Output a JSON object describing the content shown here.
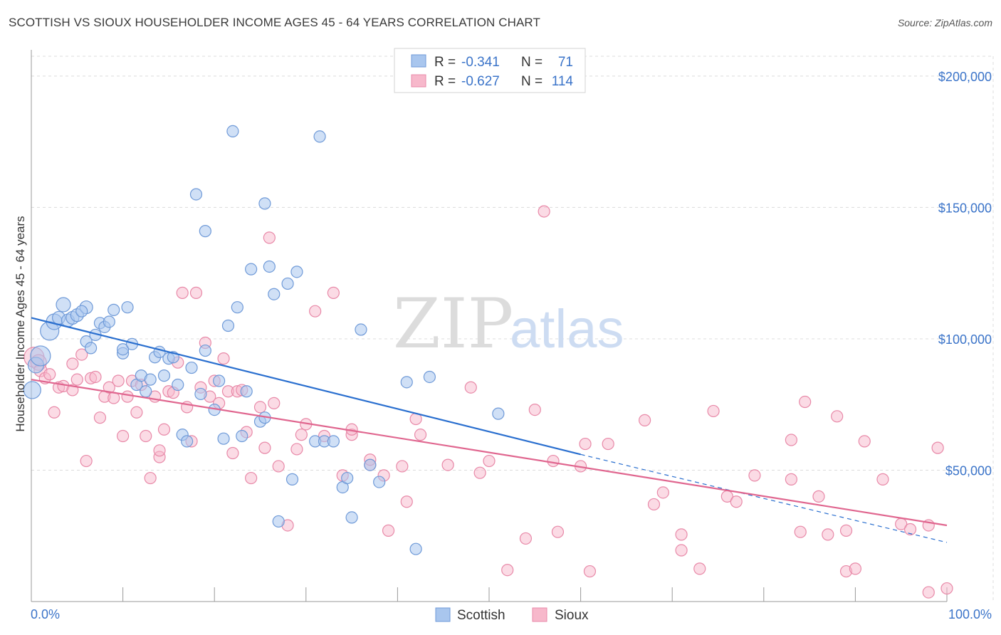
{
  "title": "SCOTTISH VS SIOUX HOUSEHOLDER INCOME AGES 45 - 64 YEARS CORRELATION CHART",
  "source": "Source: ZipAtlas.com",
  "watermark": {
    "part1": "ZIP",
    "part2": "atlas"
  },
  "colors": {
    "scottish_fill": "#a9c6ee",
    "scottish_stroke": "#6f9ad8",
    "scottish_line": "#2a6fcf",
    "sioux_fill": "#f7b8cb",
    "sioux_stroke": "#e889a8",
    "sioux_line": "#e0668f",
    "tick_text": "#3b74c9",
    "grid": "#dcdcdc"
  },
  "legend": {
    "rows": [
      {
        "r_label": "R =",
        "r_value": "-0.341",
        "n_label": "N =",
        "n_value": "71"
      },
      {
        "r_label": "R =",
        "r_value": "-0.627",
        "n_label": "N =",
        "n_value": "114"
      }
    ]
  },
  "bottom_legend": [
    "Scottish",
    "Sioux"
  ],
  "chart_data": {
    "type": "scatter",
    "title": "SCOTTISH VS SIOUX HOUSEHOLDER INCOME AGES 45 - 64 YEARS CORRELATION CHART",
    "xlabel": "",
    "ylabel": "Householder Income Ages 45 - 64 years",
    "xlim": [
      0,
      100
    ],
    "ylim": [
      0,
      210000
    ],
    "x_tick_labels": [
      "0.0%",
      "100.0%"
    ],
    "y_ticks": [
      50000,
      100000,
      150000,
      200000
    ],
    "y_tick_labels": [
      "$50,000",
      "$100,000",
      "$150,000",
      "$200,000"
    ],
    "grid": true,
    "legend_position": "top-center",
    "series": [
      {
        "name": "Scottish",
        "r": -0.341,
        "n": 71,
        "trend": {
          "x0": 0,
          "y0": 108000,
          "x1": 60,
          "y1": 56000,
          "dash_to_x": 100,
          "dash_to_y": 22500
        },
        "points": [
          [
            0.1,
            80500,
            12
          ],
          [
            0.5,
            90000,
            11
          ],
          [
            1,
            93500,
            14
          ],
          [
            2,
            103000,
            13
          ],
          [
            2.5,
            106500,
            11
          ],
          [
            3,
            108000,
            9
          ],
          [
            3.5,
            113000,
            10
          ],
          [
            4,
            107000,
            9
          ],
          [
            4.5,
            108000,
            9
          ],
          [
            5,
            109000,
            9
          ],
          [
            6,
            112000,
            9
          ],
          [
            5.5,
            110500,
            8
          ],
          [
            6,
            99000,
            8
          ],
          [
            6.5,
            96500,
            8
          ],
          [
            7,
            101500,
            8
          ],
          [
            7.5,
            106000,
            8
          ],
          [
            8,
            104500,
            8
          ],
          [
            8.5,
            106500,
            8
          ],
          [
            9,
            111000,
            8
          ],
          [
            10,
            94500,
            8
          ],
          [
            10,
            96000,
            8
          ],
          [
            10.5,
            112000,
            8
          ],
          [
            11,
            98000,
            8
          ],
          [
            11.5,
            82500,
            8
          ],
          [
            12,
            86000,
            8
          ],
          [
            12.5,
            80000,
            8
          ],
          [
            13,
            84500,
            8
          ],
          [
            13.5,
            93000,
            8
          ],
          [
            14,
            95000,
            8
          ],
          [
            14.5,
            86000,
            8
          ],
          [
            15,
            92500,
            8
          ],
          [
            15.5,
            93000,
            8
          ],
          [
            16,
            82500,
            8
          ],
          [
            16.5,
            63500,
            8
          ],
          [
            17,
            61000,
            8
          ],
          [
            17.5,
            89000,
            8
          ],
          [
            18,
            155000,
            8
          ],
          [
            18.5,
            79000,
            8
          ],
          [
            19,
            95500,
            8
          ],
          [
            19,
            141000,
            8
          ],
          [
            20,
            73000,
            8
          ],
          [
            20.5,
            84000,
            8
          ],
          [
            21,
            62000,
            8
          ],
          [
            21.5,
            105000,
            8
          ],
          [
            22,
            179000,
            8
          ],
          [
            22.5,
            112000,
            8
          ],
          [
            23,
            63000,
            8
          ],
          [
            23.5,
            80000,
            8
          ],
          [
            24,
            126500,
            8
          ],
          [
            25,
            68500,
            8
          ],
          [
            25.5,
            70000,
            8
          ],
          [
            25.5,
            151500,
            8
          ],
          [
            26,
            127500,
            8
          ],
          [
            26.5,
            117000,
            8
          ],
          [
            27,
            30500,
            8
          ],
          [
            28,
            121000,
            8
          ],
          [
            28.5,
            46500,
            8
          ],
          [
            29,
            125500,
            8
          ],
          [
            31,
            61000,
            8
          ],
          [
            31.5,
            177000,
            8
          ],
          [
            32,
            61000,
            8
          ],
          [
            33,
            61000,
            8
          ],
          [
            34,
            43500,
            8
          ],
          [
            34.5,
            47000,
            8
          ],
          [
            35,
            32000,
            8
          ],
          [
            36,
            103500,
            8
          ],
          [
            37,
            52000,
            8
          ],
          [
            38,
            45500,
            8
          ],
          [
            41,
            83500,
            8
          ],
          [
            42,
            20000,
            8
          ],
          [
            43.5,
            85500,
            8
          ],
          [
            51,
            71500,
            8
          ]
        ]
      },
      {
        "name": "Sioux",
        "r": -0.627,
        "n": 114,
        "trend": {
          "x0": 0,
          "y0": 84500,
          "x1": 100,
          "y1": 29000
        },
        "points": [
          [
            0.3,
            93000,
            14
          ],
          [
            0.8,
            91000,
            11
          ],
          [
            1,
            88000,
            9
          ],
          [
            1.5,
            85000,
            8
          ],
          [
            2,
            86500,
            8
          ],
          [
            2.5,
            72000,
            8
          ],
          [
            3,
            81500,
            8
          ],
          [
            3.5,
            82000,
            8
          ],
          [
            4.5,
            90500,
            8
          ],
          [
            4.5,
            80500,
            8
          ],
          [
            5,
            84500,
            8
          ],
          [
            5.5,
            94000,
            8
          ],
          [
            6,
            53500,
            8
          ],
          [
            6.5,
            85000,
            8
          ],
          [
            7,
            85500,
            8
          ],
          [
            7.5,
            70000,
            8
          ],
          [
            8,
            78000,
            8
          ],
          [
            8.5,
            81500,
            8
          ],
          [
            9,
            77500,
            8
          ],
          [
            9.5,
            84000,
            8
          ],
          [
            10,
            63000,
            8
          ],
          [
            10.5,
            78000,
            8
          ],
          [
            11,
            84000,
            8
          ],
          [
            11.5,
            72000,
            8
          ],
          [
            12,
            82500,
            8
          ],
          [
            12.5,
            63000,
            8
          ],
          [
            13,
            47000,
            8
          ],
          [
            13.5,
            78000,
            8
          ],
          [
            14,
            55000,
            8
          ],
          [
            14,
            57500,
            8
          ],
          [
            14.5,
            65500,
            8
          ],
          [
            15,
            80000,
            8
          ],
          [
            15.5,
            79500,
            8
          ],
          [
            16,
            91000,
            8
          ],
          [
            16.5,
            117500,
            8
          ],
          [
            17,
            74000,
            8
          ],
          [
            17.5,
            61000,
            8
          ],
          [
            18,
            117500,
            8
          ],
          [
            18.5,
            81500,
            8
          ],
          [
            19,
            98500,
            8
          ],
          [
            19.5,
            78000,
            8
          ],
          [
            20,
            84000,
            8
          ],
          [
            20.5,
            75500,
            8
          ],
          [
            21,
            92500,
            8
          ],
          [
            21.5,
            80000,
            8
          ],
          [
            22,
            56500,
            8
          ],
          [
            22.5,
            80000,
            8
          ],
          [
            23,
            80500,
            8
          ],
          [
            23.5,
            64500,
            8
          ],
          [
            24,
            47000,
            8
          ],
          [
            25,
            74000,
            8
          ],
          [
            25.5,
            58500,
            8
          ],
          [
            26,
            138500,
            8
          ],
          [
            26.5,
            75500,
            8
          ],
          [
            27,
            51500,
            8
          ],
          [
            28,
            29000,
            8
          ],
          [
            29,
            58000,
            8
          ],
          [
            29.5,
            63500,
            8
          ],
          [
            30,
            67500,
            8
          ],
          [
            31,
            110500,
            8
          ],
          [
            32,
            63000,
            8
          ],
          [
            33,
            117500,
            8
          ],
          [
            34,
            48000,
            8
          ],
          [
            35,
            63500,
            8
          ],
          [
            35,
            65500,
            8
          ],
          [
            37,
            52000,
            8
          ],
          [
            37,
            54000,
            8
          ],
          [
            38.5,
            48000,
            8
          ],
          [
            39,
            27000,
            8
          ],
          [
            40.5,
            51500,
            8
          ],
          [
            41,
            38000,
            8
          ],
          [
            42,
            69500,
            8
          ],
          [
            42.5,
            63500,
            8
          ],
          [
            45.5,
            52000,
            8
          ],
          [
            48,
            81500,
            8
          ],
          [
            49,
            49000,
            8
          ],
          [
            50,
            53500,
            8
          ],
          [
            52,
            12000,
            8
          ],
          [
            54,
            24000,
            8
          ],
          [
            55,
            73000,
            8
          ],
          [
            56,
            148500,
            8
          ],
          [
            57,
            53500,
            8
          ],
          [
            57.5,
            26500,
            8
          ],
          [
            60,
            51500,
            8
          ],
          [
            60.5,
            60000,
            8
          ],
          [
            61,
            11500,
            8
          ],
          [
            63,
            60000,
            8
          ],
          [
            67,
            69000,
            8
          ],
          [
            68,
            37000,
            8
          ],
          [
            69,
            41500,
            8
          ],
          [
            71,
            19500,
            8
          ],
          [
            71,
            25500,
            8
          ],
          [
            73,
            12500,
            8
          ],
          [
            74.5,
            72500,
            8
          ],
          [
            76,
            40000,
            8
          ],
          [
            77,
            38000,
            8
          ],
          [
            79,
            48000,
            8
          ],
          [
            83,
            46500,
            8
          ],
          [
            83,
            61500,
            8
          ],
          [
            84,
            26500,
            8
          ],
          [
            84.5,
            76000,
            8
          ],
          [
            86,
            40000,
            8
          ],
          [
            87,
            25500,
            8
          ],
          [
            88,
            70500,
            8
          ],
          [
            89,
            27000,
            8
          ],
          [
            89,
            11500,
            8
          ],
          [
            90,
            12500,
            8
          ],
          [
            91,
            61000,
            8
          ],
          [
            93,
            46500,
            8
          ],
          [
            95,
            29500,
            8
          ],
          [
            96,
            27500,
            8
          ],
          [
            98,
            29000,
            8
          ],
          [
            98,
            3500,
            8
          ],
          [
            99,
            58500,
            8
          ],
          [
            100,
            5000,
            8
          ]
        ]
      }
    ]
  }
}
